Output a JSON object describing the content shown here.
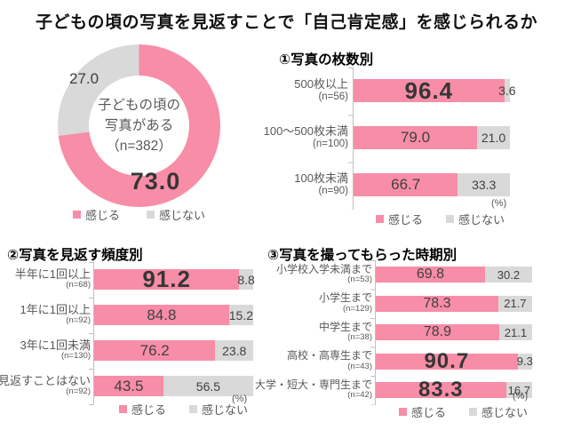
{
  "title": "子どもの頃の写真を見返すことで「自己肯定感」を感じられるか",
  "unit_label": "(%)",
  "legend": {
    "feel": "感じる",
    "not_feel": "感じない"
  },
  "colors": {
    "feel_pink": "#F78DA7",
    "not_feel_gray": "#D9D9D9",
    "axis_gray": "#BFBFBF",
    "value_text": "#404040",
    "label_text": "#595959"
  },
  "chart_data": [
    {
      "id": "has-childhood-photos-donut",
      "type": "pie",
      "shape": "donut",
      "center_lines": [
        "子どもの頃の",
        "写真がある",
        "（n=382）"
      ],
      "labels": [
        "感じる",
        "感じない"
      ],
      "values": [
        73.0,
        27.0
      ],
      "value_labels": [
        "73.0",
        "27.0"
      ],
      "colors": [
        "#F78DA7",
        "#D9D9D9"
      ],
      "start_angle_deg": 0,
      "direction": "clockwise",
      "legend_position": "bottom"
    },
    {
      "id": "by-photo-count",
      "type": "bar",
      "variant": "horizontal-stacked-100pct",
      "title": "①写真の枚数別",
      "unit": "(%)",
      "xlim": [
        0,
        100
      ],
      "series_names": [
        "感じる",
        "感じない"
      ],
      "colors": [
        "#F78DA7",
        "#D9D9D9"
      ],
      "legend_position": "bottom",
      "rows": [
        {
          "label": "500枚以上",
          "n": "(n=56)",
          "feel": 96.4,
          "feel_label": "96.4",
          "feel_class": "emph",
          "notfeel": 3.6,
          "notfeel_label": "3.6"
        },
        {
          "label": "100～500枚未満",
          "n": "(n=100)",
          "feel": 79.0,
          "feel_label": "79.0",
          "notfeel": 21.0,
          "notfeel_label": "21.0"
        },
        {
          "label": "100枚未満",
          "n": "(n=90)",
          "feel": 66.7,
          "feel_label": "66.7",
          "notfeel": 33.3,
          "notfeel_label": "33.3"
        }
      ]
    },
    {
      "id": "by-viewing-frequency",
      "type": "bar",
      "variant": "horizontal-stacked-100pct",
      "title": "②写真を見返す頻度別",
      "unit": "(%)",
      "xlim": [
        0,
        100
      ],
      "series_names": [
        "感じる",
        "感じない"
      ],
      "colors": [
        "#F78DA7",
        "#D9D9D9"
      ],
      "legend_position": "bottom",
      "rows": [
        {
          "label": "半年に1回以上",
          "n": "(n=68)",
          "feel": 91.2,
          "feel_label": "91.2",
          "feel_class": "emph",
          "notfeel": 8.8,
          "notfeel_label": "8.8"
        },
        {
          "label": "1年に1回以上",
          "n": "(n=92)",
          "feel": 84.8,
          "feel_label": "84.8",
          "notfeel": 15.2,
          "notfeel_label": "15.2"
        },
        {
          "label": "3年に1回未満",
          "n": "(n=130)",
          "feel": 76.2,
          "feel_label": "76.2",
          "notfeel": 23.8,
          "notfeel_label": "23.8"
        },
        {
          "label": "見返すことはない",
          "n": "(n=92)",
          "feel": 43.5,
          "feel_label": "43.5",
          "notfeel": 56.5,
          "notfeel_label": "56.5"
        }
      ]
    },
    {
      "id": "by-photo-period",
      "type": "bar",
      "variant": "horizontal-stacked-100pct",
      "title": "③写真を撮ってもらった時期別",
      "unit": "(%)",
      "xlim": [
        0,
        100
      ],
      "series_names": [
        "感じる",
        "感じない"
      ],
      "colors": [
        "#F78DA7",
        "#D9D9D9"
      ],
      "legend_position": "bottom",
      "rows": [
        {
          "label": "小学校入学未満まで",
          "n": "(n=53)",
          "feel": 69.8,
          "feel_label": "69.8",
          "notfeel": 30.2,
          "notfeel_label": "30.2"
        },
        {
          "label": "小学生まで",
          "n": "(n=129)",
          "feel": 78.3,
          "feel_label": "78.3",
          "notfeel": 21.7,
          "notfeel_label": "21.7"
        },
        {
          "label": "中学生まで",
          "n": "(n=38)",
          "feel": 78.9,
          "feel_label": "78.9",
          "notfeel": 21.1,
          "notfeel_label": "21.1"
        },
        {
          "label": "高校・高専生まで",
          "n": "(n=43)",
          "feel": 90.7,
          "feel_label": "90.7",
          "feel_class": "emph",
          "notfeel": 9.3,
          "notfeel_label": "9.3"
        },
        {
          "label": "大学・短大・専門生まで",
          "n": "(n=42)",
          "feel": 83.3,
          "feel_label": "83.3",
          "feel_class": "emph",
          "notfeel": 16.7,
          "notfeel_label": "16.7"
        }
      ]
    }
  ]
}
